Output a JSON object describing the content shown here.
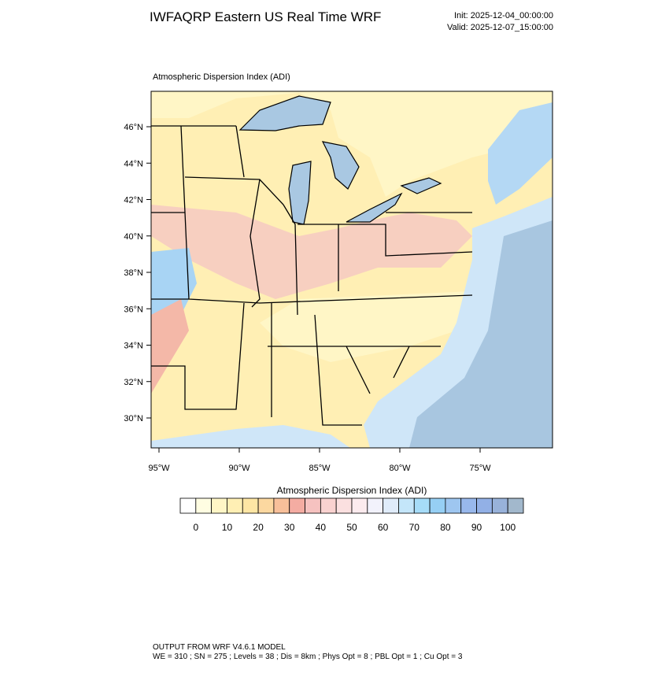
{
  "header": {
    "title": "IWFAQRP Eastern US Real Time WRF",
    "init": "Init: 2025-12-04_00:00:00",
    "valid": "Valid: 2025-12-07_15:00:00"
  },
  "map": {
    "title": "Atmospheric Dispersion Index   (ADI)",
    "lat_ticks": [
      {
        "value": 30,
        "label": "30°N"
      },
      {
        "value": 32,
        "label": "32°N"
      },
      {
        "value": 34,
        "label": "34°N"
      },
      {
        "value": 36,
        "label": "36°N"
      },
      {
        "value": 38,
        "label": "38°N"
      },
      {
        "value": 40,
        "label": "40°N"
      },
      {
        "value": 42,
        "label": "42°N"
      },
      {
        "value": 44,
        "label": "44°N"
      },
      {
        "value": 46,
        "label": "46°N"
      }
    ],
    "lon_ticks": [
      {
        "value": -95,
        "label": "95°W"
      },
      {
        "value": -90,
        "label": "90°W"
      },
      {
        "value": -85,
        "label": "85°W"
      },
      {
        "value": -80,
        "label": "80°W"
      },
      {
        "value": -75,
        "label": "75°W"
      }
    ]
  },
  "colorbar": {
    "title": "Atmospheric Dispersion Index  (ADI)",
    "colors": [
      "#ffffff",
      "#fffde2",
      "#fff6c6",
      "#ffefb4",
      "#feE6a4",
      "#fcd8a0",
      "#f8c09a",
      "#f4aca2",
      "#f6c2c0",
      "#f9d2d0",
      "#fbe0e0",
      "#fcebee",
      "#f2f2fc",
      "#e0ecfa",
      "#c4e6fa",
      "#a6dcf8",
      "#96cff4",
      "#9ec6f0",
      "#98b8ec",
      "#92b0e6",
      "#98b2da",
      "#a2b8cc"
    ],
    "ticks": [
      0,
      10,
      20,
      30,
      40,
      50,
      60,
      70,
      80,
      90,
      100
    ]
  },
  "footer": {
    "line1": "OUTPUT FROM WRF V4.6.1 MODEL",
    "line2": "WE = 310 ; SN = 275 ; Levels = 38 ; Dis = 8km ; Phys Opt = 8 ; PBL Opt = 1 ; Cu Opt = 3"
  }
}
